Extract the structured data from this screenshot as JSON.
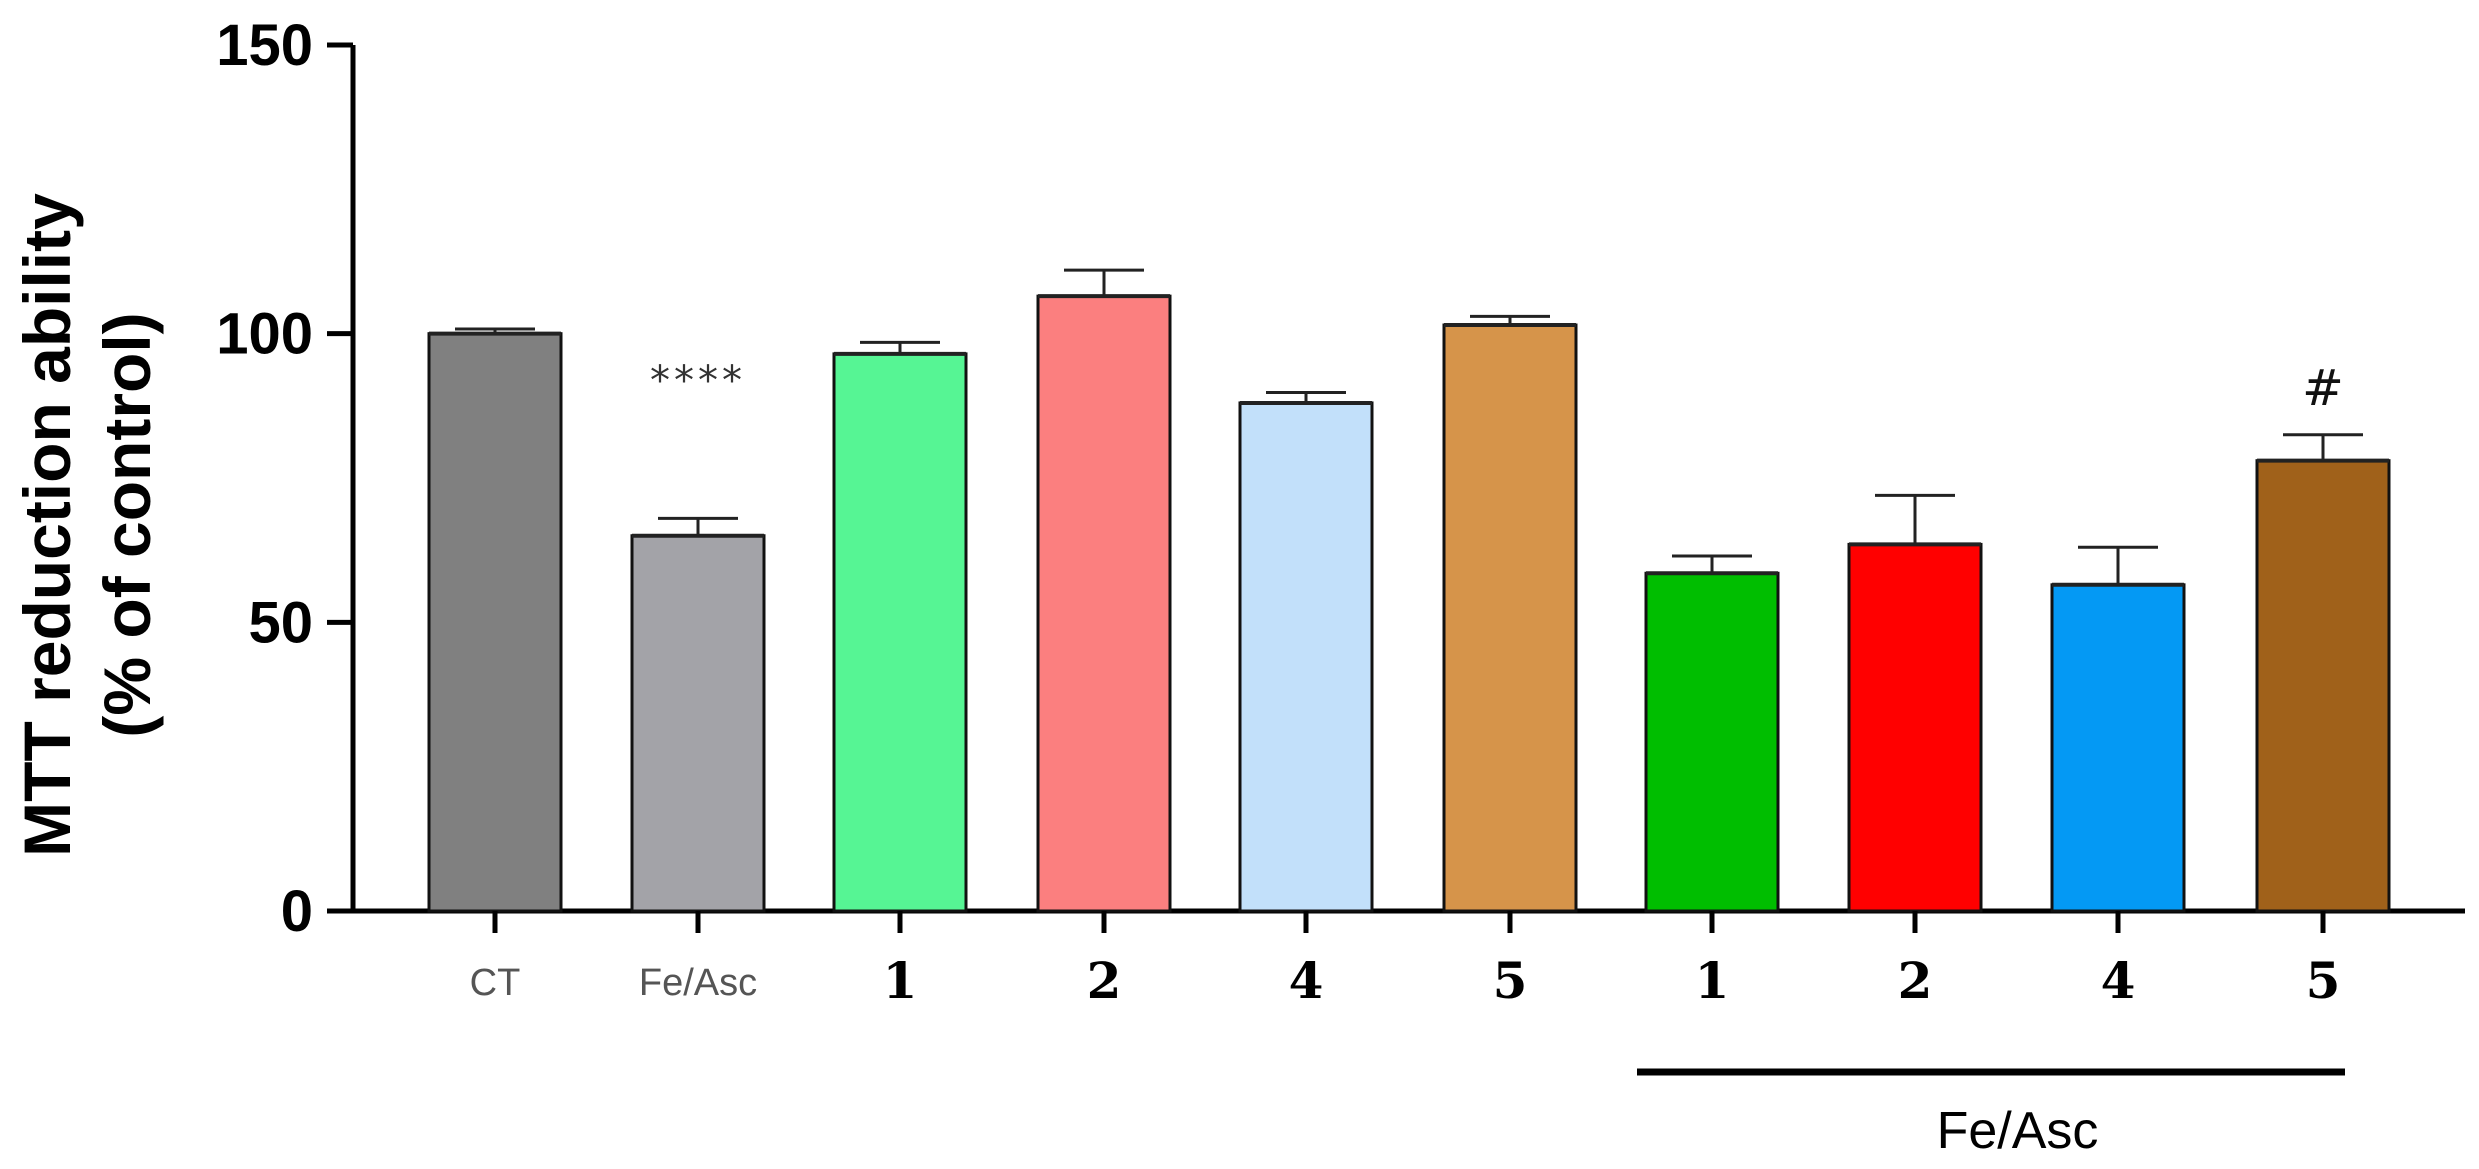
{
  "chart_data": {
    "type": "bar",
    "ylabel_lines": [
      "MTT reduction ability",
      "(% of control)"
    ],
    "ylim": [
      0,
      150
    ],
    "yticks": [
      "0",
      "50",
      "100",
      "150"
    ],
    "grid": false,
    "categories": [
      "CT",
      "Fe/Asc",
      "1",
      "2",
      "4",
      "5",
      "1",
      "2",
      "4",
      "5"
    ],
    "values": [
      100,
      65,
      96.5,
      106.5,
      88,
      101.5,
      58.5,
      63.5,
      56.5,
      78
    ],
    "errors": [
      0.8,
      3,
      2,
      4.5,
      1.8,
      1.5,
      3,
      8.5,
      6.5,
      4.5
    ],
    "colors": [
      "#808080",
      "#a3a3a8",
      "#56f594",
      "#fb7f7f",
      "#c2e0fa",
      "#d6944a",
      "#00be00",
      "#ff0000",
      "#0499f4",
      "#a0611a"
    ],
    "annotations": [
      {
        "bar": 1,
        "text": "****"
      },
      {
        "bar": 9,
        "text": "#"
      }
    ],
    "group": {
      "label": "Fe/Asc",
      "from_bar": 6,
      "to_bar": 9
    }
  }
}
